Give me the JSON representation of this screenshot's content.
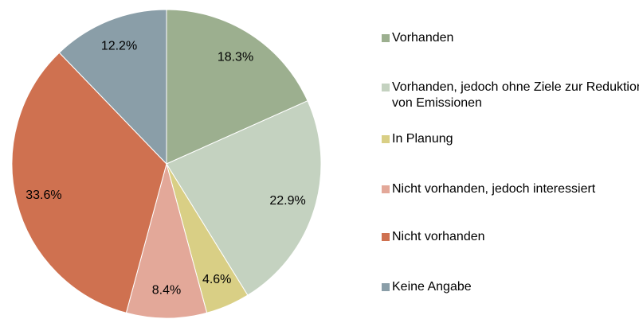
{
  "chart_data": {
    "type": "pie",
    "categories": [
      "Vorhanden",
      "Vorhanden, jedoch ohne Ziele zur Reduktion von Emissionen",
      "In Planung",
      "Nicht vorhanden, jedoch interessiert",
      "Nicht vorhanden",
      "Keine Angabe"
    ],
    "values": [
      18.3,
      22.9,
      4.6,
      8.4,
      33.6,
      12.2
    ],
    "value_labels": [
      "18.3%",
      "22.9%",
      "4.6%",
      "8.4%",
      "33.6%",
      "12.2%"
    ],
    "colors": [
      "#9caf8f",
      "#c4d2c0",
      "#d9cf85",
      "#e3a899",
      "#cf7150",
      "#8a9ea8"
    ],
    "legend": "right"
  }
}
